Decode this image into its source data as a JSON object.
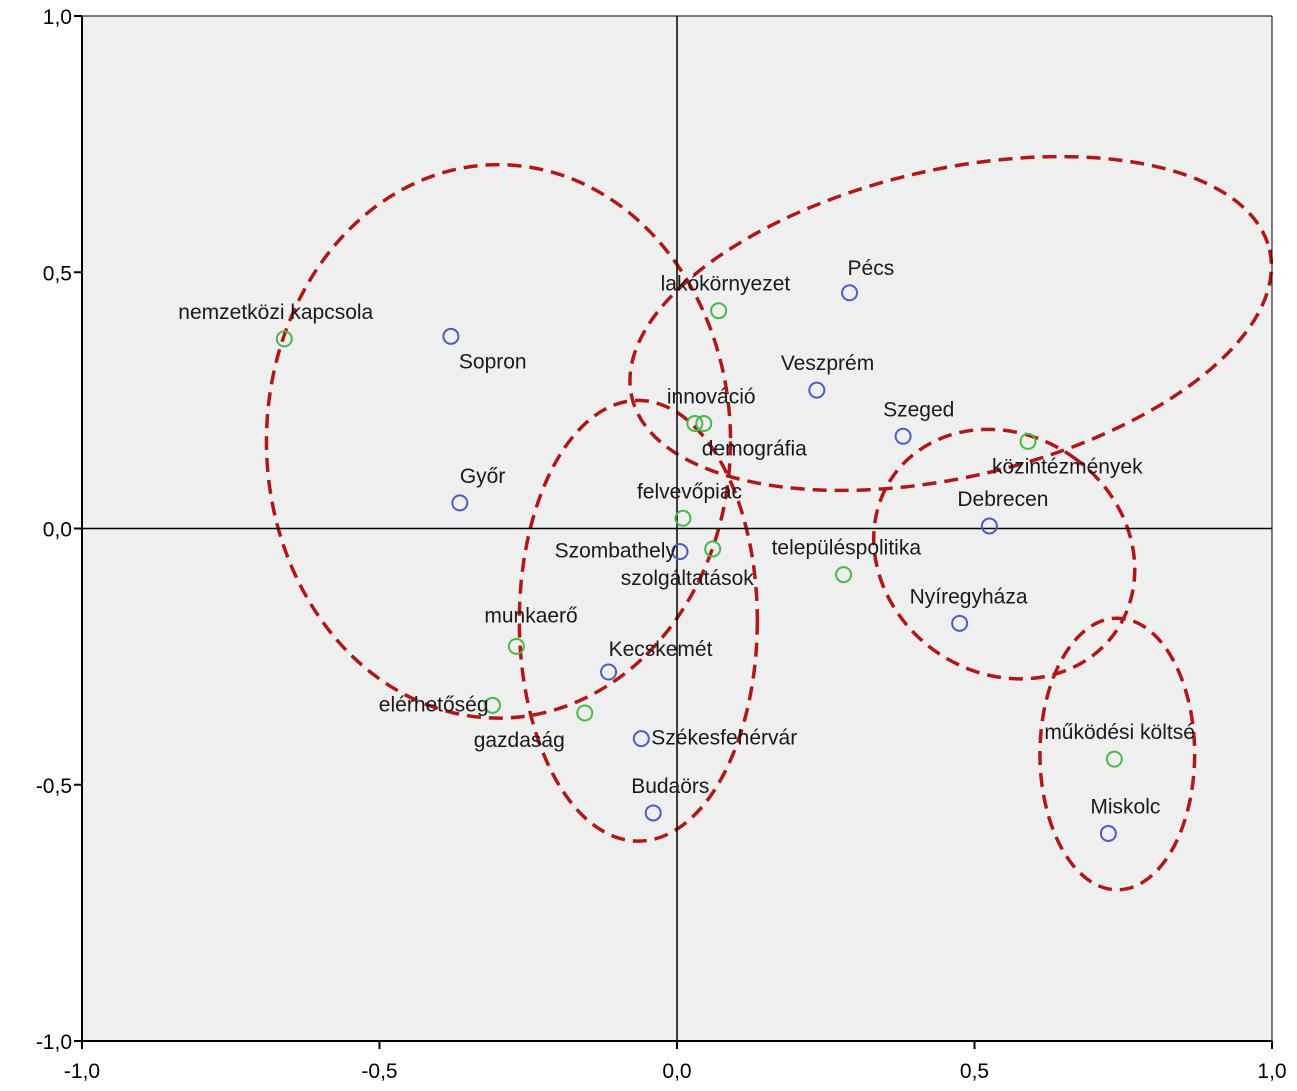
{
  "chart_data": {
    "type": "scatter",
    "xlim": [
      -1.0,
      1.0
    ],
    "ylim": [
      -1.0,
      1.0
    ],
    "x_ticks": [
      "-1,0",
      "-0,5",
      "0,0",
      "0,5",
      "1,0"
    ],
    "y_ticks": [
      "1,0",
      "0,5",
      "0,0",
      "-0,5",
      "-1,0"
    ],
    "grid": false,
    "reference_lines": [
      {
        "axis": "x",
        "value": 0.0
      },
      {
        "axis": "y",
        "value": 0.0
      }
    ],
    "series": [
      {
        "color": "#4a5fc1",
        "points": [
          {
            "label": "Pécs",
            "x": 0.29,
            "y": 0.46
          },
          {
            "label": "Sopron",
            "x": -0.38,
            "y": 0.375
          },
          {
            "label": "Veszprém",
            "x": 0.235,
            "y": 0.27
          },
          {
            "label": "Szeged",
            "x": 0.38,
            "y": 0.18
          },
          {
            "label": "Győr",
            "x": -0.365,
            "y": 0.05
          },
          {
            "label": "Debrecen",
            "x": 0.525,
            "y": 0.005
          },
          {
            "label": "Szombathely",
            "x": 0.005,
            "y": -0.045
          },
          {
            "label": "Nyíregyháza",
            "x": 0.475,
            "y": -0.185
          },
          {
            "label": "Kecskemét",
            "x": -0.115,
            "y": -0.28
          },
          {
            "label": "Székesfehérvár",
            "x": -0.06,
            "y": -0.41
          },
          {
            "label": "Budaörs",
            "x": -0.04,
            "y": -0.555
          },
          {
            "label": "Miskolc",
            "x": 0.725,
            "y": -0.595
          }
        ]
      },
      {
        "color": "#4ab84a",
        "points": [
          {
            "label": "lakókörnyezet",
            "x": 0.07,
            "y": 0.425
          },
          {
            "label": "nemzetközi kapcsola",
            "x": -0.66,
            "y": 0.37
          },
          {
            "label": "innováció",
            "x": 0.03,
            "y": 0.205
          },
          {
            "label": "demográfia",
            "x": 0.045,
            "y": 0.205
          },
          {
            "label": "közintézmények",
            "x": 0.59,
            "y": 0.17
          },
          {
            "label": "felvevőpiac",
            "x": 0.01,
            "y": 0.02
          },
          {
            "label": "szolgáltatások",
            "x": 0.06,
            "y": -0.04
          },
          {
            "label": "településpolitika",
            "x": 0.28,
            "y": -0.09
          },
          {
            "label": "munkaerő",
            "x": -0.27,
            "y": -0.23
          },
          {
            "label": "elérhetőség",
            "x": -0.31,
            "y": -0.345
          },
          {
            "label": "gazdaság",
            "x": -0.155,
            "y": -0.36
          },
          {
            "label": "működési költsé",
            "x": 0.735,
            "y": -0.45
          }
        ]
      }
    ],
    "annotations": [
      {
        "shape": "dashed-ellipse",
        "color": "#b01818",
        "cx": -0.3,
        "cy": 0.17,
        "rx": 0.39,
        "ry": 0.54,
        "rotate": 0
      },
      {
        "shape": "dashed-ellipse",
        "color": "#b01818",
        "cx": 0.46,
        "cy": 0.4,
        "rx": 0.55,
        "ry": 0.3,
        "rotate": -13
      },
      {
        "shape": "dashed-ellipse",
        "color": "#b01818",
        "cx": -0.065,
        "cy": -0.18,
        "rx": 0.2,
        "ry": 0.43,
        "rotate": 0
      },
      {
        "shape": "dashed-ellipse",
        "color": "#b01818",
        "cx": 0.55,
        "cy": -0.05,
        "rx": 0.2,
        "ry": 0.265,
        "rotate": -55
      },
      {
        "shape": "dashed-ellipse",
        "color": "#b01818",
        "cx": 0.74,
        "cy": -0.44,
        "rx": 0.13,
        "ry": 0.265,
        "rotate": 0
      }
    ]
  },
  "colors": {
    "plot_background": "#efefef",
    "axis": "#000000",
    "marker_blue": "#4a5fc1",
    "marker_green": "#4ab84a",
    "ellipse": "#b01818"
  }
}
